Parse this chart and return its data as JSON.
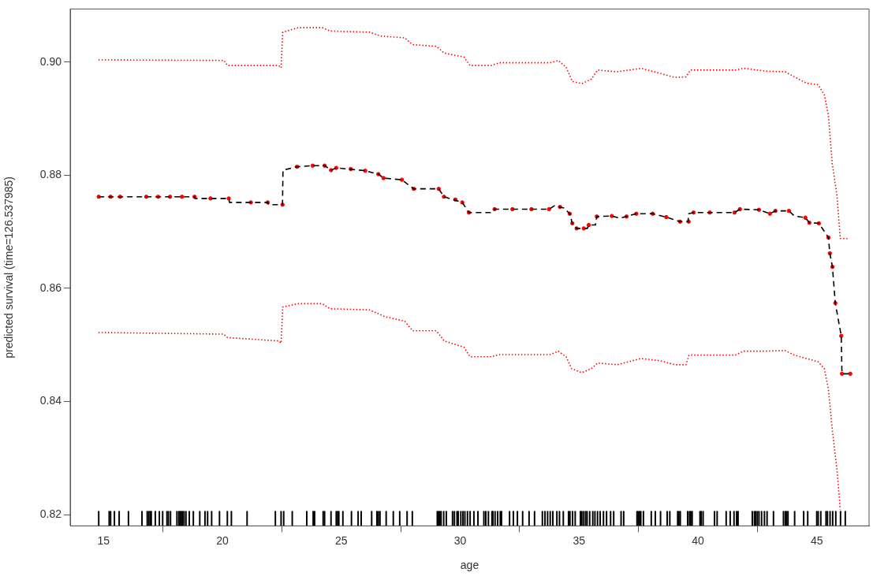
{
  "chart_data": {
    "type": "line",
    "xlabel": "age",
    "ylabel": "predicted survival (time=126.537985)",
    "xlim": [
      13.6,
      47.2
    ],
    "ylim": [
      0.818,
      0.9094
    ],
    "xticks": [
      15,
      20,
      25,
      30,
      35,
      40,
      45
    ],
    "yticks": [
      0.82,
      0.84,
      0.86,
      0.88,
      {
        "value": 0.9,
        "label": "0.90"
      }
    ],
    "grid": false,
    "legend": false,
    "series": [
      {
        "color": "#ff0000",
        "line_style": "dotted",
        "marker": "none",
        "x": [
          14.79,
          20.06,
          20.22,
          22.37,
          22.47,
          22.54,
          23.2,
          24.2,
          24.53,
          26.18,
          26.68,
          27.67,
          28.0,
          29.0,
          29.33,
          30.16,
          30.42,
          31.31,
          31.65,
          33.8,
          34.13,
          34.46,
          34.72,
          35.12,
          35.52,
          35.78,
          36.61,
          37.61,
          38.43,
          39.03,
          39.5,
          39.69,
          41.58,
          41.91,
          42.9,
          43.67,
          44.06,
          44.56,
          45.06,
          45.32,
          45.49,
          45.65,
          45.85,
          45.99,
          46.29
        ],
        "values": [
          0.9004,
          0.9003,
          0.8994,
          0.8994,
          0.899,
          0.9053,
          0.9061,
          0.9061,
          0.9055,
          0.9053,
          0.9046,
          0.9043,
          0.9031,
          0.9028,
          0.9016,
          0.9009,
          0.8994,
          0.8994,
          0.8999,
          0.8999,
          0.9003,
          0.8991,
          0.8966,
          0.8962,
          0.897,
          0.8986,
          0.8983,
          0.8989,
          0.898,
          0.8973,
          0.8974,
          0.8986,
          0.8986,
          0.8989,
          0.8984,
          0.8983,
          0.8974,
          0.8963,
          0.896,
          0.8942,
          0.8906,
          0.8821,
          0.8764,
          0.8688,
          0.8688
        ]
      },
      {
        "color": "#ff0000",
        "line_style": "dotted",
        "marker": "none",
        "x": [
          14.79,
          20.06,
          20.22,
          22.37,
          22.47,
          22.54,
          23.2,
          24.2,
          24.53,
          26.18,
          26.84,
          27.67,
          28.0,
          29.0,
          29.33,
          30.16,
          30.42,
          31.31,
          31.65,
          33.8,
          34.13,
          34.46,
          34.69,
          35.12,
          35.52,
          35.78,
          36.61,
          37.61,
          38.43,
          39.03,
          39.5,
          39.63,
          41.58,
          41.91,
          42.9,
          43.67,
          44.06,
          44.56,
          45.06,
          45.32,
          45.49,
          45.65,
          45.85,
          45.99
        ],
        "values": [
          0.8522,
          0.8519,
          0.8513,
          0.8507,
          0.8503,
          0.8567,
          0.8573,
          0.8573,
          0.8564,
          0.8562,
          0.855,
          0.8542,
          0.8525,
          0.8525,
          0.8507,
          0.8496,
          0.8479,
          0.8479,
          0.8483,
          0.8483,
          0.8489,
          0.8479,
          0.8458,
          0.8451,
          0.8458,
          0.8468,
          0.8465,
          0.8476,
          0.8472,
          0.8465,
          0.8465,
          0.8482,
          0.8482,
          0.8489,
          0.8489,
          0.849,
          0.8482,
          0.8476,
          0.847,
          0.8458,
          0.8422,
          0.8351,
          0.828,
          0.8209
        ]
      },
      {
        "color": "#000000",
        "line_style": "dashed",
        "marker": "none",
        "x": [
          14.8,
          18.83,
          18.85,
          20.27,
          20.3,
          21.91,
          21.95,
          22.53,
          22.55,
          23.14,
          23.8,
          24.3,
          24.57,
          24.79,
          26.01,
          26.56,
          26.78,
          27.55,
          28.05,
          29.1,
          29.32,
          30.09,
          30.37,
          31.28,
          31.45,
          33.74,
          33.97,
          34.37,
          34.61,
          34.72,
          34.9,
          35.35,
          35.41,
          35.69,
          35.75,
          36.38,
          36.72,
          37.41,
          38.1,
          38.67,
          39.25,
          39.59,
          39.61,
          39.82,
          41.54,
          41.77,
          42.57,
          43.03,
          43.26,
          43.83,
          44.06,
          44.52,
          44.69,
          45.09,
          45.49,
          45.55,
          45.66,
          45.78,
          46.03,
          46.06,
          46.41
        ],
        "values": [
          0.8762,
          0.8762,
          0.8759,
          0.8759,
          0.8752,
          0.8752,
          0.8748,
          0.8748,
          0.8809,
          0.8815,
          0.8817,
          0.8817,
          0.8809,
          0.8813,
          0.8808,
          0.8802,
          0.8795,
          0.8792,
          0.8776,
          0.8776,
          0.8762,
          0.8752,
          0.8734,
          0.8734,
          0.874,
          0.874,
          0.8746,
          0.8742,
          0.8732,
          0.8715,
          0.8706,
          0.8706,
          0.8712,
          0.8712,
          0.8727,
          0.8728,
          0.8724,
          0.8732,
          0.8732,
          0.8726,
          0.8718,
          0.8718,
          0.8732,
          0.8734,
          0.8734,
          0.874,
          0.8739,
          0.8732,
          0.8737,
          0.8737,
          0.8728,
          0.8725,
          0.8716,
          0.8715,
          0.869,
          0.8662,
          0.8638,
          0.8574,
          0.8516,
          0.8449,
          0.8449
        ]
      },
      {
        "type": "scatter",
        "color": "#ff0000",
        "marker": "circle",
        "x": [
          14.8,
          15.3,
          15.7,
          16.8,
          17.3,
          17.8,
          18.3,
          18.83,
          19.5,
          20.27,
          21.2,
          21.91,
          22.53,
          23.14,
          23.8,
          24.3,
          24.57,
          24.79,
          25.4,
          26.01,
          26.56,
          26.78,
          27.55,
          28.05,
          29.1,
          29.32,
          29.8,
          30.09,
          30.37,
          31.45,
          32.2,
          33.0,
          33.74,
          34.2,
          34.61,
          34.72,
          34.9,
          35.2,
          35.41,
          35.75,
          36.38,
          37.0,
          37.41,
          38.1,
          38.67,
          39.25,
          39.61,
          39.82,
          40.5,
          41.54,
          41.77,
          42.57,
          43.03,
          43.26,
          43.83,
          44.52,
          44.69,
          45.09,
          45.49,
          45.55,
          45.66,
          45.78,
          46.03,
          46.06,
          46.41
        ],
        "values": [
          0.8762,
          0.8762,
          0.8762,
          0.8762,
          0.8762,
          0.8762,
          0.8762,
          0.8762,
          0.8759,
          0.8759,
          0.8752,
          0.8752,
          0.8748,
          0.8815,
          0.8817,
          0.8817,
          0.8809,
          0.8813,
          0.8811,
          0.8808,
          0.8802,
          0.8795,
          0.8792,
          0.8776,
          0.8776,
          0.8762,
          0.8757,
          0.8752,
          0.8734,
          0.874,
          0.874,
          0.874,
          0.874,
          0.8744,
          0.8732,
          0.8715,
          0.8706,
          0.8706,
          0.8712,
          0.8727,
          0.8728,
          0.8727,
          0.8732,
          0.8732,
          0.8726,
          0.8718,
          0.8718,
          0.8734,
          0.8734,
          0.8734,
          0.874,
          0.8739,
          0.8732,
          0.8737,
          0.8737,
          0.8725,
          0.8716,
          0.8715,
          0.869,
          0.8662,
          0.8638,
          0.8574,
          0.8516,
          0.8449,
          0.8449
        ]
      },
      {
        "type": "bar",
        "color": "#000000",
        "x": [
          14.8,
          15.24,
          15.3,
          15.46,
          15.66,
          16.05,
          16.62,
          16.84,
          16.9,
          16.96,
          17.01,
          17.18,
          17.35,
          17.49,
          17.67,
          17.73,
          17.82,
          18.09,
          18.17,
          18.22,
          18.28,
          18.33,
          18.39,
          18.47,
          18.61,
          18.78,
          19.05,
          19.27,
          19.38,
          19.55,
          19.88,
          20.21,
          20.38,
          21.04,
          22.23,
          22.47,
          22.58,
          22.94,
          23.55,
          23.82,
          23.88,
          24.24,
          24.3,
          24.57,
          24.79,
          24.85,
          24.9,
          25.07,
          25.43,
          25.71,
          25.84,
          26.28,
          26.5,
          26.56,
          26.63,
          26.89,
          27.19,
          27.46,
          27.77,
          27.99,
          29.04,
          29.09,
          29.15,
          29.2,
          29.31,
          29.42,
          29.68,
          29.76,
          29.87,
          29.92,
          30.03,
          30.12,
          30.2,
          30.31,
          30.42,
          30.58,
          30.75,
          31.0,
          31.08,
          31.19,
          31.34,
          31.38,
          31.47,
          31.58,
          31.69,
          31.74,
          32.08,
          32.24,
          32.41,
          32.63,
          32.9,
          33.13,
          33.46,
          33.57,
          33.68,
          33.79,
          33.9,
          34.07,
          34.18,
          34.34,
          34.56,
          34.62,
          34.73,
          34.84,
          35.06,
          35.12,
          35.2,
          35.28,
          35.34,
          35.45,
          35.58,
          35.67,
          35.78,
          35.89,
          36.03,
          36.16,
          36.33,
          36.46,
          36.77,
          36.88,
          37.44,
          37.49,
          37.55,
          37.6,
          37.71,
          38.04,
          38.21,
          38.43,
          38.71,
          38.82,
          39.15,
          39.2,
          39.26,
          39.57,
          39.65,
          39.7,
          39.76,
          40.09,
          40.14,
          40.22,
          40.7,
          40.81,
          41.19,
          41.36,
          41.52,
          41.63,
          41.69,
          42.29,
          42.38,
          42.43,
          42.5,
          42.57,
          42.68,
          42.8,
          42.91,
          43.18,
          43.6,
          43.68,
          43.73,
          43.79,
          44.07,
          44.45,
          44.62,
          45.0,
          45.06,
          45.17,
          45.39,
          45.45,
          45.56,
          45.67,
          45.8,
          46.0,
          46.2
        ],
        "base": [
          0.818,
          0.818,
          0.818,
          0.818,
          0.818,
          0.818,
          0.818,
          0.818,
          0.818,
          0.818,
          0.818,
          0.818,
          0.818,
          0.818,
          0.818,
          0.818,
          0.818,
          0.818,
          0.818,
          0.818,
          0.818,
          0.818,
          0.818,
          0.818,
          0.818,
          0.818,
          0.818,
          0.818,
          0.818,
          0.818,
          0.818,
          0.818,
          0.818,
          0.818,
          0.818,
          0.818,
          0.818,
          0.818,
          0.818,
          0.818,
          0.818,
          0.818,
          0.818,
          0.818,
          0.818,
          0.818,
          0.818,
          0.818,
          0.818,
          0.818,
          0.818,
          0.818,
          0.818,
          0.818,
          0.818,
          0.818,
          0.818,
          0.818,
          0.818,
          0.818,
          0.818,
          0.818,
          0.818,
          0.818,
          0.818,
          0.818,
          0.818,
          0.818,
          0.818,
          0.818,
          0.818,
          0.818,
          0.818,
          0.818,
          0.818,
          0.818,
          0.818,
          0.818,
          0.818,
          0.818,
          0.818,
          0.818,
          0.818,
          0.818,
          0.818,
          0.818,
          0.818,
          0.818,
          0.818,
          0.818,
          0.818,
          0.818,
          0.818,
          0.818,
          0.818,
          0.818,
          0.818,
          0.818,
          0.818,
          0.818,
          0.818,
          0.818,
          0.818,
          0.818,
          0.818,
          0.818,
          0.818,
          0.818,
          0.818,
          0.818,
          0.818,
          0.818,
          0.818,
          0.818,
          0.818,
          0.818,
          0.818,
          0.818,
          0.818,
          0.818,
          0.818,
          0.818,
          0.818,
          0.818,
          0.818,
          0.818,
          0.818,
          0.818,
          0.818,
          0.818,
          0.818,
          0.818,
          0.818,
          0.818,
          0.818,
          0.818,
          0.818,
          0.818,
          0.818,
          0.818,
          0.818,
          0.818,
          0.818,
          0.818,
          0.818,
          0.818,
          0.818,
          0.818,
          0.818,
          0.818,
          0.818,
          0.818,
          0.818,
          0.818,
          0.818,
          0.818,
          0.818,
          0.818,
          0.818,
          0.818,
          0.818,
          0.818,
          0.818,
          0.818,
          0.818,
          0.818,
          0.818,
          0.818,
          0.818,
          0.818,
          0.818,
          0.818,
          0.818
        ],
        "values": [
          0.0026,
          0.0026,
          0.0026,
          0.0026,
          0.0026,
          0.0026,
          0.0026,
          0.0026,
          0.0026,
          0.0026,
          0.0026,
          0.0026,
          0.0026,
          0.0026,
          0.0026,
          0.0026,
          0.0026,
          0.0026,
          0.0026,
          0.0026,
          0.0026,
          0.0026,
          0.0026,
          0.0026,
          0.0026,
          0.0026,
          0.0026,
          0.0026,
          0.0026,
          0.0026,
          0.0026,
          0.0026,
          0.0026,
          0.0026,
          0.0026,
          0.0026,
          0.0026,
          0.0026,
          0.0026,
          0.0026,
          0.0026,
          0.0026,
          0.0026,
          0.0026,
          0.0026,
          0.0026,
          0.0026,
          0.0026,
          0.0026,
          0.0026,
          0.0026,
          0.0026,
          0.0026,
          0.0026,
          0.0026,
          0.0026,
          0.0026,
          0.0026,
          0.0026,
          0.0026,
          0.0026,
          0.0026,
          0.0026,
          0.0026,
          0.0026,
          0.0026,
          0.0026,
          0.0026,
          0.0026,
          0.0026,
          0.0026,
          0.0026,
          0.0026,
          0.0026,
          0.0026,
          0.0026,
          0.0026,
          0.0026,
          0.0026,
          0.0026,
          0.0026,
          0.0026,
          0.0026,
          0.0026,
          0.0026,
          0.0026,
          0.0026,
          0.0026,
          0.0026,
          0.0026,
          0.0026,
          0.0026,
          0.0026,
          0.0026,
          0.0026,
          0.0026,
          0.0026,
          0.0026,
          0.0026,
          0.0026,
          0.0026,
          0.0026,
          0.0026,
          0.0026,
          0.0026,
          0.0026,
          0.0026,
          0.0026,
          0.0026,
          0.0026,
          0.0026,
          0.0026,
          0.0026,
          0.0026,
          0.0026,
          0.0026,
          0.0026,
          0.0026,
          0.0026,
          0.0026,
          0.0026,
          0.0026,
          0.0026,
          0.0026,
          0.0026,
          0.0026,
          0.0026,
          0.0026,
          0.0026,
          0.0026,
          0.0026,
          0.0026,
          0.0026,
          0.0026,
          0.0026,
          0.0026,
          0.0026,
          0.0026,
          0.0026,
          0.0026,
          0.0026,
          0.0026,
          0.0026,
          0.0026,
          0.0026,
          0.0026,
          0.0026,
          0.0026,
          0.0026,
          0.0026,
          0.0026,
          0.0026,
          0.0026,
          0.0026,
          0.0026,
          0.0026,
          0.0026,
          0.0026,
          0.0026,
          0.0026,
          0.0026,
          0.0026,
          0.0026,
          0.0026,
          0.0026,
          0.0026,
          0.0026,
          0.0026,
          0.0026,
          0.0026,
          0.0026,
          0.0026,
          0.0026
        ]
      }
    ]
  }
}
